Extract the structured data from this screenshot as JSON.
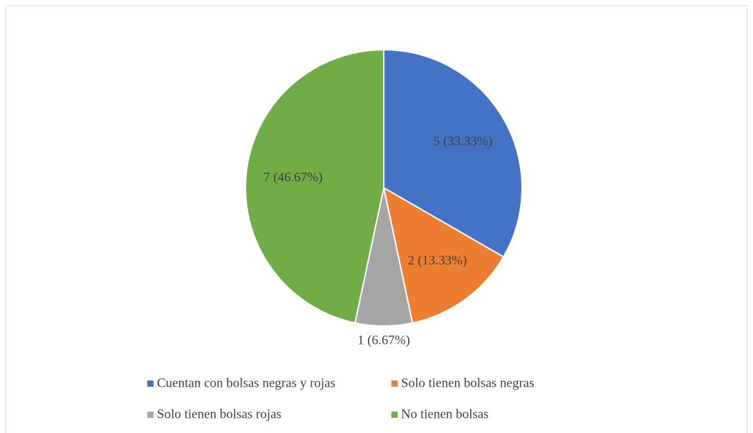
{
  "chart_data": {
    "type": "pie",
    "categories": [
      "Cuentan con bolsas negras y rojas",
      "Solo tienen bolsas negras",
      "Solo tienen bolsas rojas",
      "No tienen bolsas"
    ],
    "values": [
      5,
      2,
      1,
      7
    ],
    "value_labels": [
      "5 (33.33%)",
      "2 (13.33%)",
      "1 (6.67%)",
      "7 (46.67%)"
    ],
    "colors": [
      "#4472c4",
      "#ed7d31",
      "#a5a5a5",
      "#70ad47"
    ],
    "legend": "bottom"
  }
}
